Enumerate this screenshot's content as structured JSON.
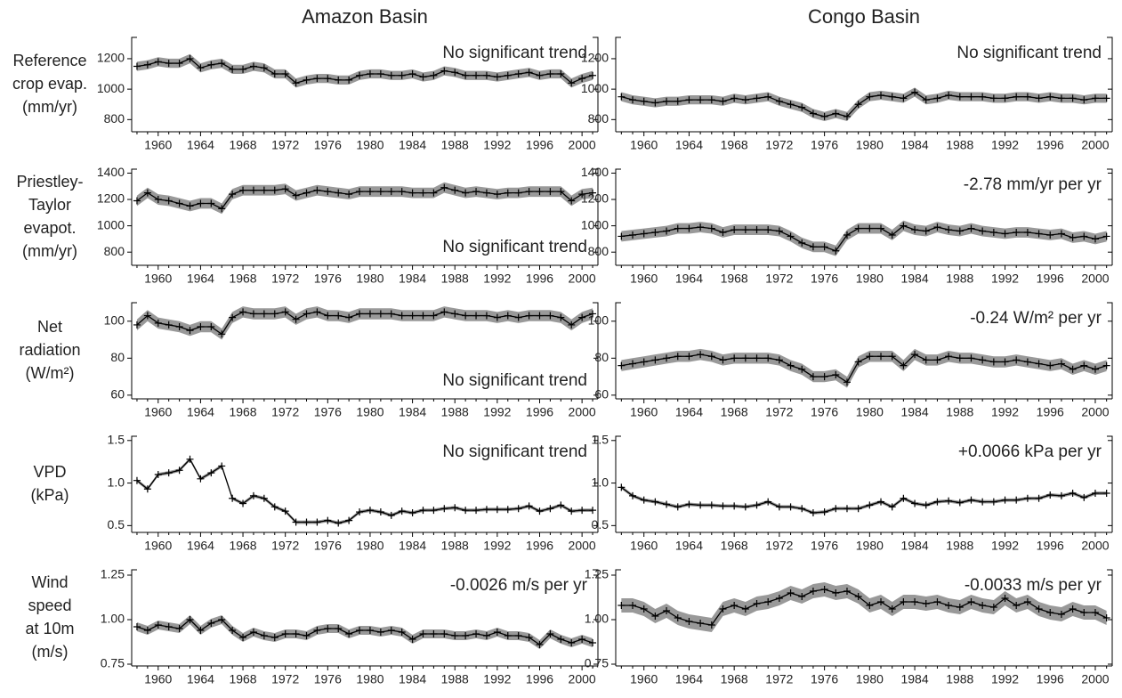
{
  "chart_data": [
    {
      "type": "line",
      "title": "Amazon Basin",
      "ylabel": [
        "Reference",
        "crop evap.",
        "(mm/yr)"
      ],
      "annotation": "No significant trend",
      "annotation_position": "top-right",
      "x": [
        1958,
        1959,
        1960,
        1961,
        1962,
        1963,
        1964,
        1965,
        1966,
        1967,
        1968,
        1969,
        1970,
        1971,
        1972,
        1973,
        1974,
        1975,
        1976,
        1977,
        1978,
        1979,
        1980,
        1981,
        1982,
        1983,
        1984,
        1985,
        1986,
        1987,
        1988,
        1989,
        1990,
        1991,
        1992,
        1993,
        1994,
        1995,
        1996,
        1997,
        1998,
        1999,
        2000,
        2001
      ],
      "values": [
        1150,
        1160,
        1180,
        1170,
        1170,
        1200,
        1140,
        1160,
        1170,
        1130,
        1130,
        1150,
        1140,
        1100,
        1100,
        1040,
        1060,
        1070,
        1070,
        1060,
        1060,
        1090,
        1100,
        1100,
        1090,
        1090,
        1100,
        1080,
        1090,
        1120,
        1110,
        1090,
        1090,
        1090,
        1080,
        1090,
        1100,
        1110,
        1090,
        1100,
        1100,
        1040,
        1070,
        1090
      ],
      "band": 30,
      "color": "#000000",
      "band_color": "#999999",
      "xlim": [
        1957.5,
        2001.5
      ],
      "xticks": [
        1960,
        1964,
        1968,
        1972,
        1976,
        1980,
        1984,
        1988,
        1992,
        1996,
        2000
      ],
      "ylim": [
        720,
        1340
      ],
      "yticks": [
        800,
        1000,
        1200
      ]
    },
    {
      "type": "line",
      "title": "Congo Basin",
      "annotation": "No significant trend",
      "annotation_position": "top-right",
      "x": [
        1958,
        1959,
        1960,
        1961,
        1962,
        1963,
        1964,
        1965,
        1966,
        1967,
        1968,
        1969,
        1970,
        1971,
        1972,
        1973,
        1974,
        1975,
        1976,
        1977,
        1978,
        1979,
        1980,
        1981,
        1982,
        1983,
        1984,
        1985,
        1986,
        1987,
        1988,
        1989,
        1990,
        1991,
        1992,
        1993,
        1994,
        1995,
        1996,
        1997,
        1998,
        1999,
        2000,
        2001
      ],
      "values": [
        950,
        930,
        920,
        910,
        920,
        920,
        930,
        930,
        930,
        920,
        940,
        930,
        940,
        950,
        920,
        900,
        880,
        840,
        820,
        840,
        820,
        900,
        950,
        960,
        950,
        940,
        980,
        930,
        940,
        960,
        950,
        950,
        950,
        940,
        940,
        950,
        950,
        940,
        950,
        940,
        940,
        930,
        940,
        940
      ],
      "band": 30,
      "color": "#000000",
      "band_color": "#999999",
      "xlim": [
        1957.5,
        2001.5
      ],
      "xticks": [
        1960,
        1964,
        1968,
        1972,
        1976,
        1980,
        1984,
        1988,
        1992,
        1996,
        2000
      ],
      "ylim": [
        720,
        1340
      ],
      "yticks": [
        800,
        1000,
        1200
      ]
    },
    {
      "type": "line",
      "ylabel": [
        "Priestley-",
        "Taylor",
        "evapot.",
        "(mm/yr)"
      ],
      "annotation": "No significant trend",
      "annotation_position": "bottom-right",
      "x": [
        1958,
        1959,
        1960,
        1961,
        1962,
        1963,
        1964,
        1965,
        1966,
        1967,
        1968,
        1969,
        1970,
        1971,
        1972,
        1973,
        1974,
        1975,
        1976,
        1977,
        1978,
        1979,
        1980,
        1981,
        1982,
        1983,
        1984,
        1985,
        1986,
        1987,
        1988,
        1989,
        1990,
        1991,
        1992,
        1993,
        1994,
        1995,
        1996,
        1997,
        1998,
        1999,
        2000,
        2001
      ],
      "values": [
        1190,
        1250,
        1200,
        1190,
        1170,
        1150,
        1170,
        1170,
        1130,
        1240,
        1270,
        1270,
        1270,
        1270,
        1280,
        1230,
        1250,
        1270,
        1260,
        1250,
        1240,
        1260,
        1260,
        1260,
        1260,
        1260,
        1250,
        1250,
        1250,
        1290,
        1270,
        1250,
        1260,
        1250,
        1240,
        1250,
        1250,
        1260,
        1260,
        1260,
        1260,
        1190,
        1240,
        1250
      ],
      "band": 40,
      "color": "#000000",
      "band_color": "#999999",
      "xlim": [
        1957.5,
        2001.5
      ],
      "xticks": [
        1960,
        1964,
        1968,
        1972,
        1976,
        1980,
        1984,
        1988,
        1992,
        1996,
        2000
      ],
      "ylim": [
        700,
        1430
      ],
      "yticks": [
        800,
        1000,
        1200,
        1400
      ]
    },
    {
      "type": "line",
      "annotation": "-2.78 mm/yr per yr",
      "annotation_position": "top-right",
      "x": [
        1958,
        1959,
        1960,
        1961,
        1962,
        1963,
        1964,
        1965,
        1966,
        1967,
        1968,
        1969,
        1970,
        1971,
        1972,
        1973,
        1974,
        1975,
        1976,
        1977,
        1978,
        1979,
        1980,
        1981,
        1982,
        1983,
        1984,
        1985,
        1986,
        1987,
        1988,
        1989,
        1990,
        1991,
        1992,
        1993,
        1994,
        1995,
        1996,
        1997,
        1998,
        1999,
        2000,
        2001
      ],
      "values": [
        920,
        930,
        940,
        950,
        960,
        980,
        980,
        990,
        980,
        950,
        970,
        970,
        970,
        970,
        960,
        920,
        870,
        840,
        840,
        810,
        930,
        980,
        980,
        980,
        930,
        1000,
        970,
        960,
        990,
        970,
        960,
        980,
        960,
        950,
        940,
        950,
        950,
        940,
        930,
        940,
        910,
        920,
        900,
        920
      ],
      "band": 40,
      "color": "#000000",
      "band_color": "#999999",
      "xlim": [
        1957.5,
        2001.5
      ],
      "xticks": [
        1960,
        1964,
        1968,
        1972,
        1976,
        1980,
        1984,
        1988,
        1992,
        1996,
        2000
      ],
      "ylim": [
        700,
        1430
      ],
      "yticks": [
        800,
        1000,
        1200,
        1400
      ]
    },
    {
      "type": "line",
      "ylabel": [
        "Net",
        "radiation",
        "(W/m²)"
      ],
      "annotation": "No significant trend",
      "annotation_position": "bottom-right",
      "x": [
        1958,
        1959,
        1960,
        1961,
        1962,
        1963,
        1964,
        1965,
        1966,
        1967,
        1968,
        1969,
        1970,
        1971,
        1972,
        1973,
        1974,
        1975,
        1976,
        1977,
        1978,
        1979,
        1980,
        1981,
        1982,
        1983,
        1984,
        1985,
        1986,
        1987,
        1988,
        1989,
        1990,
        1991,
        1992,
        1993,
        1994,
        1995,
        1996,
        1997,
        1998,
        1999,
        2000,
        2001
      ],
      "values": [
        98,
        103,
        99,
        98,
        97,
        95,
        97,
        97,
        93,
        102,
        105,
        104,
        104,
        104,
        105,
        101,
        104,
        105,
        103,
        103,
        102,
        104,
        104,
        104,
        104,
        103,
        103,
        103,
        103,
        105,
        104,
        103,
        103,
        103,
        102,
        103,
        102,
        103,
        103,
        103,
        102,
        98,
        102,
        104
      ],
      "band": 3,
      "color": "#000000",
      "band_color": "#999999",
      "xlim": [
        1957.5,
        2001.5
      ],
      "xticks": [
        1960,
        1964,
        1968,
        1972,
        1976,
        1980,
        1984,
        1988,
        1992,
        1996,
        2000
      ],
      "ylim": [
        58,
        110
      ],
      "yticks": [
        60,
        80,
        100
      ]
    },
    {
      "type": "line",
      "annotation": "-0.24 W/m² per yr",
      "annotation_position": "top-right",
      "x": [
        1958,
        1959,
        1960,
        1961,
        1962,
        1963,
        1964,
        1965,
        1966,
        1967,
        1968,
        1969,
        1970,
        1971,
        1972,
        1973,
        1974,
        1975,
        1976,
        1977,
        1978,
        1979,
        1980,
        1981,
        1982,
        1983,
        1984,
        1985,
        1986,
        1987,
        1988,
        1989,
        1990,
        1991,
        1992,
        1993,
        1994,
        1995,
        1996,
        1997,
        1998,
        1999,
        2000,
        2001
      ],
      "values": [
        76,
        77,
        78,
        79,
        80,
        81,
        81,
        82,
        81,
        79,
        80,
        80,
        80,
        80,
        79,
        76,
        74,
        70,
        70,
        71,
        67,
        78,
        81,
        81,
        81,
        76,
        82,
        79,
        79,
        81,
        80,
        80,
        79,
        78,
        78,
        79,
        78,
        77,
        76,
        77,
        74,
        76,
        74,
        76
      ],
      "band": 3,
      "color": "#000000",
      "band_color": "#999999",
      "xlim": [
        1957.5,
        2001.5
      ],
      "xticks": [
        1960,
        1964,
        1968,
        1972,
        1976,
        1980,
        1984,
        1988,
        1992,
        1996,
        2000
      ],
      "ylim": [
        58,
        110
      ],
      "yticks": [
        60,
        80,
        100
      ]
    },
    {
      "type": "line",
      "ylabel": [
        "VPD",
        "(kPa)"
      ],
      "annotation": "No significant trend",
      "annotation_position": "top-right",
      "x": [
        1958,
        1959,
        1960,
        1961,
        1962,
        1963,
        1964,
        1965,
        1966,
        1967,
        1968,
        1969,
        1970,
        1971,
        1972,
        1973,
        1974,
        1975,
        1976,
        1977,
        1978,
        1979,
        1980,
        1981,
        1982,
        1983,
        1984,
        1985,
        1986,
        1987,
        1988,
        1989,
        1990,
        1991,
        1992,
        1993,
        1994,
        1995,
        1996,
        1997,
        1998,
        1999,
        2000,
        2001
      ],
      "values": [
        1.03,
        0.93,
        1.1,
        1.12,
        1.15,
        1.28,
        1.05,
        1.12,
        1.2,
        0.82,
        0.76,
        0.85,
        0.82,
        0.72,
        0.67,
        0.54,
        0.54,
        0.54,
        0.56,
        0.53,
        0.56,
        0.66,
        0.68,
        0.66,
        0.62,
        0.67,
        0.65,
        0.68,
        0.68,
        0.7,
        0.71,
        0.68,
        0.68,
        0.69,
        0.69,
        0.69,
        0.7,
        0.73,
        0.67,
        0.7,
        0.74,
        0.67,
        0.68,
        0.68
      ],
      "band": 0.02,
      "color": "#000000",
      "band_color": "#999999",
      "xlim": [
        1957.5,
        2001.5
      ],
      "xticks": [
        1960,
        1964,
        1968,
        1972,
        1976,
        1980,
        1984,
        1988,
        1992,
        1996,
        2000
      ],
      "ylim": [
        0.42,
        1.55
      ],
      "yticks": [
        0.5,
        {
          "value": 1,
          "label": "1.0"
        },
        1.5
      ]
    },
    {
      "type": "line",
      "annotation": "+0.0066 kPa per yr",
      "annotation_position": "top-right",
      "x": [
        1958,
        1959,
        1960,
        1961,
        1962,
        1963,
        1964,
        1965,
        1966,
        1967,
        1968,
        1969,
        1970,
        1971,
        1972,
        1973,
        1974,
        1975,
        1976,
        1977,
        1978,
        1979,
        1980,
        1981,
        1982,
        1983,
        1984,
        1985,
        1986,
        1987,
        1988,
        1989,
        1990,
        1991,
        1992,
        1993,
        1994,
        1995,
        1996,
        1997,
        1998,
        1999,
        2000,
        2001
      ],
      "values": [
        0.95,
        0.85,
        0.8,
        0.78,
        0.75,
        0.72,
        0.75,
        0.74,
        0.74,
        0.73,
        0.73,
        0.72,
        0.74,
        0.78,
        0.72,
        0.72,
        0.7,
        0.65,
        0.66,
        0.7,
        0.7,
        0.7,
        0.74,
        0.78,
        0.72,
        0.82,
        0.76,
        0.74,
        0.78,
        0.79,
        0.77,
        0.8,
        0.78,
        0.78,
        0.8,
        0.8,
        0.82,
        0.82,
        0.86,
        0.85,
        0.88,
        0.83,
        0.88,
        0.88
      ],
      "band": 0.02,
      "color": "#000000",
      "band_color": "#999999",
      "xlim": [
        1957.5,
        2001.5
      ],
      "xticks": [
        1960,
        1964,
        1968,
        1972,
        1976,
        1980,
        1984,
        1988,
        1992,
        1996,
        2000
      ],
      "ylim": [
        0.42,
        1.55
      ],
      "yticks": [
        0.5,
        {
          "value": 1,
          "label": "1.0"
        },
        1.5
      ]
    },
    {
      "type": "line",
      "ylabel": [
        "Wind",
        "speed",
        "at 10m",
        "(m/s)"
      ],
      "annotation": "-0.0026 m/s per yr",
      "annotation_position": "top-right",
      "x": [
        1958,
        1959,
        1960,
        1961,
        1962,
        1963,
        1964,
        1965,
        1966,
        1967,
        1968,
        1969,
        1970,
        1971,
        1972,
        1973,
        1974,
        1975,
        1976,
        1977,
        1978,
        1979,
        1980,
        1981,
        1982,
        1983,
        1984,
        1985,
        1986,
        1987,
        1988,
        1989,
        1990,
        1991,
        1992,
        1993,
        1994,
        1995,
        1996,
        1997,
        1998,
        1999,
        2000,
        2001
      ],
      "values": [
        0.96,
        0.94,
        0.97,
        0.96,
        0.95,
        1.0,
        0.94,
        0.98,
        1.0,
        0.94,
        0.9,
        0.93,
        0.91,
        0.9,
        0.92,
        0.92,
        0.91,
        0.94,
        0.95,
        0.95,
        0.92,
        0.94,
        0.94,
        0.93,
        0.94,
        0.93,
        0.89,
        0.92,
        0.92,
        0.92,
        0.91,
        0.91,
        0.92,
        0.91,
        0.93,
        0.91,
        0.91,
        0.9,
        0.86,
        0.92,
        0.89,
        0.87,
        0.89,
        0.87
      ],
      "band": 0.025,
      "color": "#000000",
      "band_color": "#999999",
      "xlim": [
        1957.5,
        2001.5
      ],
      "xticks": [
        1960,
        1964,
        1968,
        1972,
        1976,
        1980,
        1984,
        1988,
        1992,
        1996,
        2000
      ],
      "ylim": [
        0.74,
        1.28
      ],
      "yticks": [
        0.75,
        {
          "value": 1,
          "label": "1.00"
        },
        1.25
      ]
    },
    {
      "type": "line",
      "annotation": "-0.0033 m/s per yr",
      "annotation_position": "top-right",
      "x": [
        1958,
        1959,
        1960,
        1961,
        1962,
        1963,
        1964,
        1965,
        1966,
        1967,
        1968,
        1969,
        1970,
        1971,
        1972,
        1973,
        1974,
        1975,
        1976,
        1977,
        1978,
        1979,
        1980,
        1981,
        1982,
        1983,
        1984,
        1985,
        1986,
        1987,
        1988,
        1989,
        1990,
        1991,
        1992,
        1993,
        1994,
        1995,
        1996,
        1997,
        1998,
        1999,
        2000,
        2001
      ],
      "values": [
        1.08,
        1.08,
        1.06,
        1.02,
        1.05,
        1.01,
        0.99,
        0.98,
        0.97,
        1.06,
        1.08,
        1.06,
        1.09,
        1.1,
        1.12,
        1.15,
        1.13,
        1.16,
        1.17,
        1.15,
        1.16,
        1.13,
        1.08,
        1.1,
        1.06,
        1.1,
        1.1,
        1.09,
        1.1,
        1.08,
        1.07,
        1.1,
        1.08,
        1.07,
        1.12,
        1.08,
        1.1,
        1.06,
        1.04,
        1.03,
        1.06,
        1.04,
        1.04,
        1.01
      ],
      "band": 0.04,
      "color": "#000000",
      "band_color": "#999999",
      "xlim": [
        1957.5,
        2001.5
      ],
      "xticks": [
        1960,
        1964,
        1968,
        1972,
        1976,
        1980,
        1984,
        1988,
        1992,
        1996,
        2000
      ],
      "ylim": [
        0.74,
        1.28
      ],
      "yticks": [
        0.75,
        {
          "value": 1,
          "label": "1.00"
        },
        1.25
      ]
    }
  ]
}
